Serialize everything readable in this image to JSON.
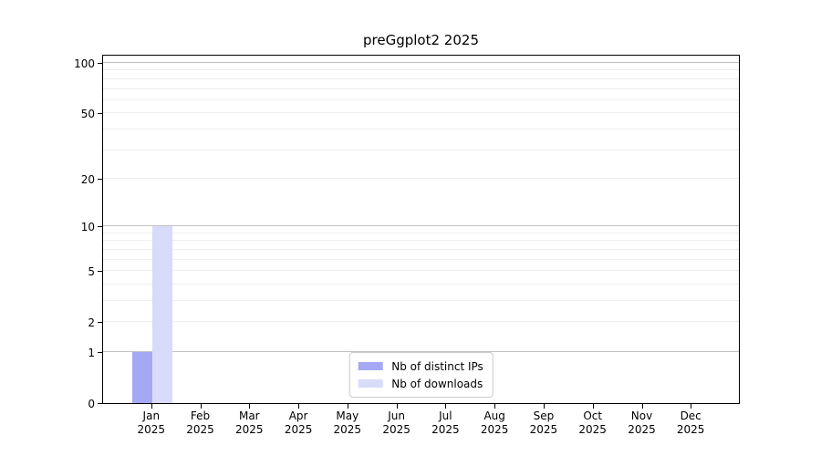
{
  "chart_data": {
    "type": "bar",
    "title": "preGgplot2 2025",
    "categories": [
      "Jan 2025",
      "Feb 2025",
      "Mar 2025",
      "Apr 2025",
      "May 2025",
      "Jun 2025",
      "Jul 2025",
      "Aug 2025",
      "Sep 2025",
      "Oct 2025",
      "Nov 2025",
      "Dec 2025"
    ],
    "series": [
      {
        "name": "Nb of distinct IPs",
        "color": "#a5a8f5",
        "values": [
          1,
          0,
          0,
          0,
          0,
          0,
          0,
          0,
          0,
          0,
          0,
          0
        ]
      },
      {
        "name": "Nb of downloads",
        "color": "#d9dbfa",
        "values": [
          10,
          0,
          0,
          0,
          0,
          0,
          0,
          0,
          0,
          0,
          0,
          0
        ]
      }
    ],
    "xlabel": "",
    "ylabel": "",
    "yscale": "log1p",
    "ylim": [
      0,
      100
    ],
    "yticks": [
      0,
      1,
      2,
      5,
      10,
      20,
      50,
      100
    ],
    "minor_gridlines": [
      3,
      4,
      6,
      7,
      8,
      9,
      30,
      40,
      60,
      70,
      80,
      90
    ],
    "emphasized_gridlines": [
      1,
      10,
      100
    ],
    "grid": "on",
    "legend_position": "lower center"
  },
  "colors": {
    "major_gridline": "#c2c2c2",
    "minor_gridline": "#ededed",
    "axis_spine": "#000000",
    "legend_border": "#cccccc",
    "background": "#ffffff"
  }
}
